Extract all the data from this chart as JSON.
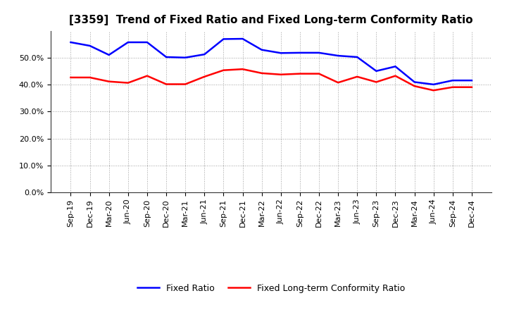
{
  "title": "[3359]  Trend of Fixed Ratio and Fixed Long-term Conformity Ratio",
  "x_labels": [
    "Sep-19",
    "Dec-19",
    "Mar-20",
    "Jun-20",
    "Sep-20",
    "Dec-20",
    "Mar-21",
    "Jun-21",
    "Sep-21",
    "Dec-21",
    "Mar-22",
    "Jun-22",
    "Sep-22",
    "Dec-22",
    "Mar-23",
    "Jun-23",
    "Sep-23",
    "Dec-23",
    "Mar-24",
    "Jun-24",
    "Sep-24",
    "Dec-24"
  ],
  "fixed_ratio": [
    0.558,
    0.545,
    0.511,
    0.558,
    0.558,
    0.503,
    0.501,
    0.513,
    0.57,
    0.571,
    0.53,
    0.518,
    0.519,
    0.519,
    0.508,
    0.503,
    0.451,
    0.468,
    0.41,
    0.401,
    0.416,
    0.416
  ],
  "fixed_lt_ratio": [
    0.427,
    0.427,
    0.412,
    0.407,
    0.433,
    0.402,
    0.402,
    0.43,
    0.454,
    0.458,
    0.443,
    0.438,
    0.441,
    0.441,
    0.408,
    0.43,
    0.41,
    0.433,
    0.395,
    0.379,
    0.391,
    0.391
  ],
  "fixed_ratio_color": "#0000FF",
  "fixed_lt_ratio_color": "#FF0000",
  "ylim": [
    0.0,
    0.6
  ],
  "yticks": [
    0.0,
    0.1,
    0.2,
    0.3,
    0.4,
    0.5
  ],
  "background_color": "#FFFFFF",
  "grid_color": "#888888",
  "legend_fixed_ratio": "Fixed Ratio",
  "legend_fixed_lt_ratio": "Fixed Long-term Conformity Ratio",
  "title_fontsize": 11,
  "tick_fontsize": 8,
  "legend_fontsize": 9,
  "linewidth": 1.8
}
